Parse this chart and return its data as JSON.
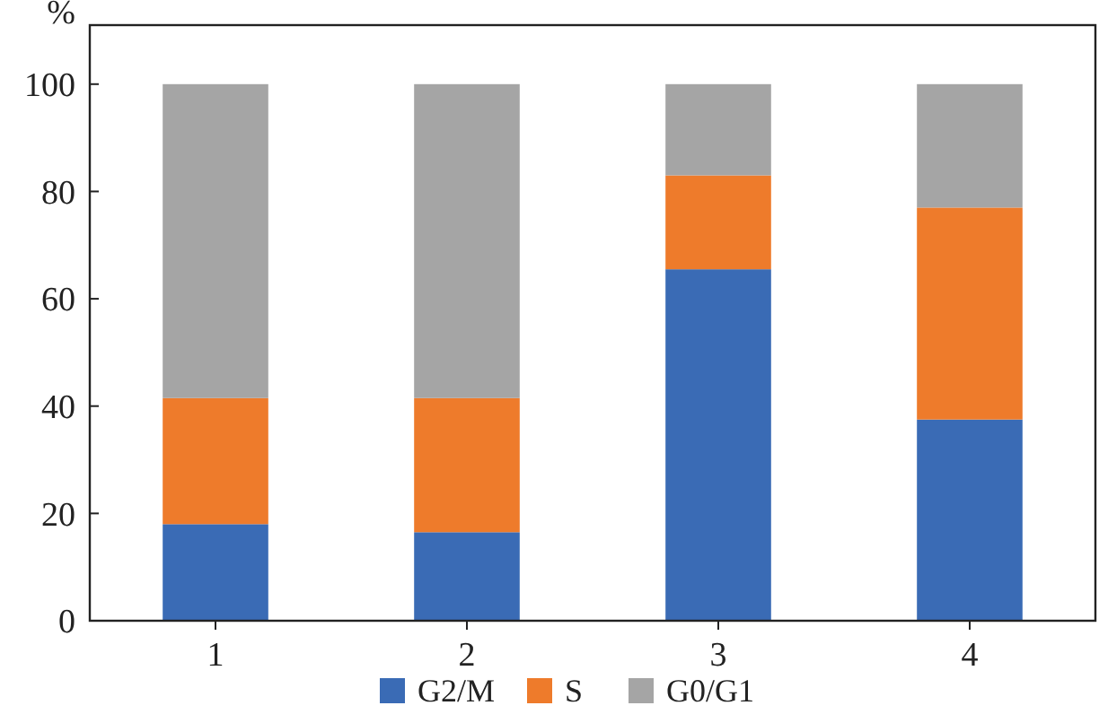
{
  "chart_data": {
    "type": "bar",
    "stacked": true,
    "ylabel": "%",
    "categories": [
      "1",
      "2",
      "3",
      "4"
    ],
    "series": [
      {
        "name": "G2/M",
        "color": "#3a6bb5",
        "values": [
          18,
          16.5,
          65.5,
          37.5
        ]
      },
      {
        "name": "S",
        "color": "#ee7b2b",
        "values": [
          23.5,
          25,
          17.5,
          39.5
        ]
      },
      {
        "name": "G0/G1",
        "color": "#a5a5a5",
        "values": [
          58.5,
          58.5,
          17,
          23
        ]
      }
    ],
    "ylim": [
      0,
      111
    ],
    "yticks": [
      0,
      20,
      40,
      60,
      80,
      100
    ],
    "grid": false,
    "legend": "bottom"
  }
}
